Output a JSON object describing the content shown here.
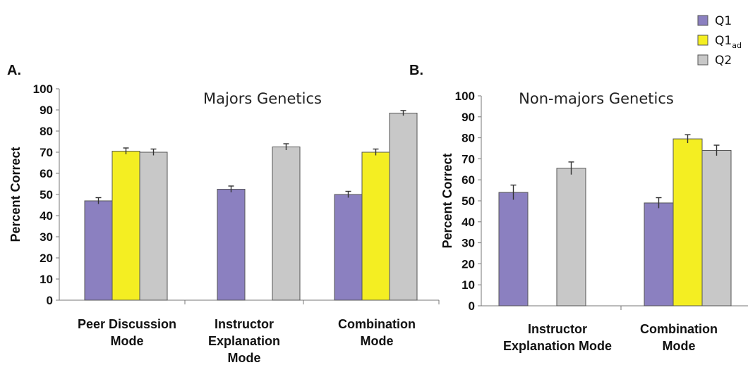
{
  "legend": [
    {
      "name": "Q1",
      "sub": "",
      "color": "#8b80c0"
    },
    {
      "name": "Q1",
      "sub": "ad",
      "color": "#f4ee22"
    },
    {
      "name": "Q2",
      "sub": "",
      "color": "#c8c8c8"
    }
  ],
  "chart_data": [
    {
      "type": "bar",
      "panel": "A.",
      "title": "Majors Genetics",
      "ylabel": "Percent Correct",
      "ylim": [
        0,
        100
      ],
      "yticks": [
        "0",
        "10",
        "20",
        "30",
        "40",
        "50",
        "60",
        "70",
        "80",
        "90",
        "100"
      ],
      "categories": [
        {
          "lines": [
            "Peer Discussion",
            "Mode"
          ]
        },
        {
          "lines": [
            "Instructor",
            "Explanation",
            "Mode"
          ]
        },
        {
          "lines": [
            "Combination",
            "Mode"
          ]
        }
      ],
      "series": [
        {
          "name": "Q1",
          "values": [
            47,
            52.5,
            50
          ],
          "errors": [
            1.5,
            1.5,
            1.5
          ]
        },
        {
          "name": "Q1ad",
          "values": [
            70.5,
            null,
            70
          ],
          "errors": [
            1.5,
            null,
            1.5
          ]
        },
        {
          "name": "Q2",
          "values": [
            70,
            72.5,
            88.5
          ],
          "errors": [
            1.5,
            1.5,
            1.2
          ]
        }
      ]
    },
    {
      "type": "bar",
      "panel": "B.",
      "title": "Non-majors Genetics",
      "ylabel": "Percent Correct",
      "ylim": [
        0,
        100
      ],
      "yticks": [
        "0",
        "10",
        "20",
        "30",
        "40",
        "50",
        "60",
        "70",
        "80",
        "90",
        "100"
      ],
      "categories": [
        {
          "lines": [
            "Instructor",
            "Explanation Mode"
          ]
        },
        {
          "lines": [
            "Combination",
            "Mode"
          ]
        }
      ],
      "series": [
        {
          "name": "Q1",
          "values": [
            54,
            49
          ],
          "errors": [
            3.5,
            2.5
          ]
        },
        {
          "name": "Q1ad",
          "values": [
            null,
            79.5
          ],
          "errors": [
            null,
            2
          ]
        },
        {
          "name": "Q2",
          "values": [
            65.5,
            74
          ],
          "errors": [
            3,
            2.5
          ]
        }
      ]
    }
  ]
}
